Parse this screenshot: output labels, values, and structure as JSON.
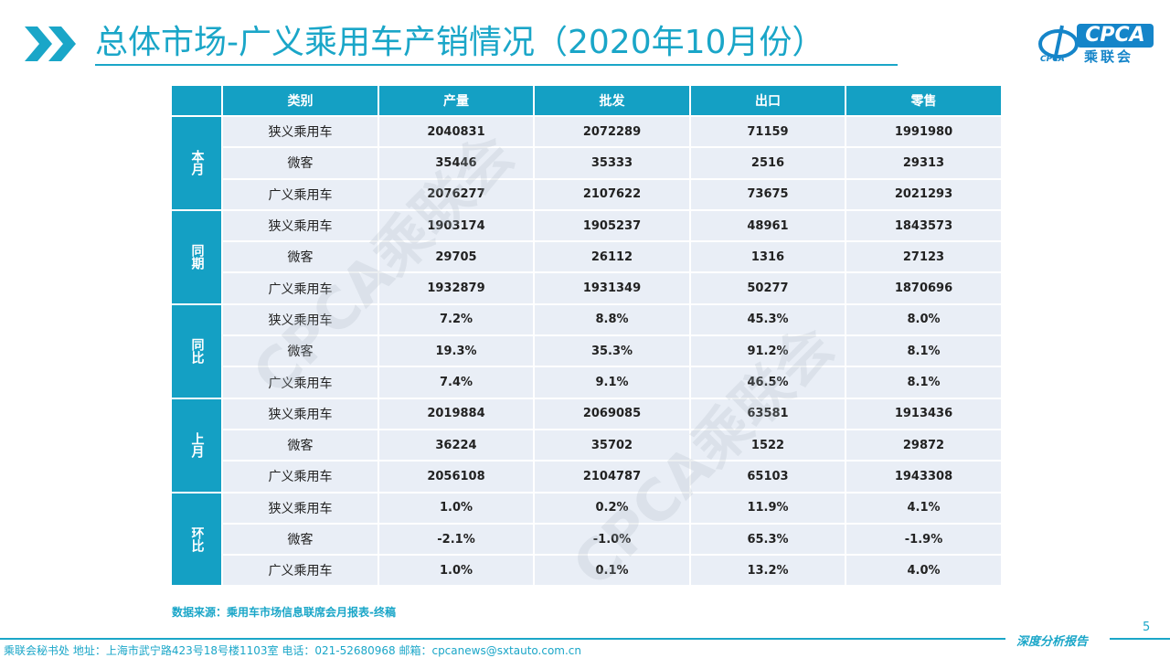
{
  "title": "总体市场-广义乘用车产销情况（2020年10月份）",
  "logo": {
    "text": "CPCA",
    "sub": "乘联会",
    "small": "CPCA"
  },
  "watermark": "CPCA乘联会",
  "table": {
    "headers": [
      "类别",
      "产量",
      "批发",
      "出口",
      "零售"
    ],
    "groups": [
      {
        "label": "本月",
        "rows": [
          {
            "cat": "狭义乘用车",
            "vals": [
              "2040831",
              "2072289",
              "71159",
              "1991980"
            ]
          },
          {
            "cat": "微客",
            "vals": [
              "35446",
              "35333",
              "2516",
              "29313"
            ]
          },
          {
            "cat": "广义乘用车",
            "vals": [
              "2076277",
              "2107622",
              "73675",
              "2021293"
            ]
          }
        ]
      },
      {
        "label": "同期",
        "rows": [
          {
            "cat": "狭义乘用车",
            "vals": [
              "1903174",
              "1905237",
              "48961",
              "1843573"
            ]
          },
          {
            "cat": "微客",
            "vals": [
              "29705",
              "26112",
              "1316",
              "27123"
            ]
          },
          {
            "cat": "广义乘用车",
            "vals": [
              "1932879",
              "1931349",
              "50277",
              "1870696"
            ]
          }
        ]
      },
      {
        "label": "同比",
        "rows": [
          {
            "cat": "狭义乘用车",
            "vals": [
              "7.2%",
              "8.8%",
              "45.3%",
              "8.0%"
            ]
          },
          {
            "cat": "微客",
            "vals": [
              "19.3%",
              "35.3%",
              "91.2%",
              "8.1%"
            ]
          },
          {
            "cat": "广义乘用车",
            "vals": [
              "7.4%",
              "9.1%",
              "46.5%",
              "8.1%"
            ]
          }
        ]
      },
      {
        "label": "上月",
        "rows": [
          {
            "cat": "狭义乘用车",
            "vals": [
              "2019884",
              "2069085",
              "63581",
              "1913436"
            ]
          },
          {
            "cat": "微客",
            "vals": [
              "36224",
              "35702",
              "1522",
              "29872"
            ]
          },
          {
            "cat": "广义乘用车",
            "vals": [
              "2056108",
              "2104787",
              "65103",
              "1943308"
            ]
          }
        ]
      },
      {
        "label": "环比",
        "rows": [
          {
            "cat": "狭义乘用车",
            "vals": [
              "1.0%",
              "0.2%",
              "11.9%",
              "4.1%"
            ]
          },
          {
            "cat": "微客",
            "vals": [
              "-2.1%",
              "-1.0%",
              "65.3%",
              "-1.9%"
            ]
          },
          {
            "cat": "广义乘用车",
            "vals": [
              "1.0%",
              "0.1%",
              "13.2%",
              "4.0%"
            ]
          }
        ]
      }
    ]
  },
  "source": "数据来源：乘用车市场信息联席会月报表-终稿",
  "page_number": "5",
  "report_label": "深度分析报告",
  "footer": "乘联会秘书处   地址：上海市武宁路423号18号楼1103室   电话：021-52680968   邮箱：cpcanews@sxtauto.com.cn",
  "colors": {
    "accent": "#1aa6c8",
    "header_bg": "#14a0c4",
    "cell_bg": "#e9eef6",
    "logo_blue": "#1585c9"
  }
}
